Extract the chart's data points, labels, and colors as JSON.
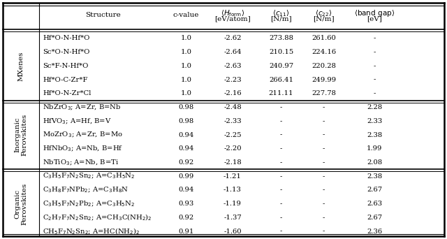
{
  "sections": [
    {
      "label": "MXenes",
      "rows": [
        [
          "Hf*O-N-Hf*O",
          "1.0",
          "-2.62",
          "273.88",
          "261.60",
          "-"
        ],
        [
          "Sc*O-N-Hf*O",
          "1.0",
          "-2.64",
          "210.15",
          "224.16",
          "-"
        ],
        [
          "Sc*F-N-Hf*O",
          "1.0",
          "-2.63",
          "240.97",
          "220.28",
          "-"
        ],
        [
          "Hf*O-C-Zr*F",
          "1.0",
          "-2.23",
          "266.41",
          "249.99",
          "-"
        ],
        [
          "Hf*O-N-Zr*Cl",
          "1.0",
          "-2.16",
          "211.11",
          "227.78",
          "-"
        ]
      ]
    },
    {
      "label": "Inorganic\nPerovskites",
      "rows": [
        [
          "NbZrO$_3$; A=Zr, B=Nb",
          "0.98",
          "-2.48",
          "-",
          "-",
          "2.28"
        ],
        [
          "HfVO$_3$; A=Hf, B=V",
          "0.98",
          "-2.33",
          "-",
          "-",
          "2.33"
        ],
        [
          "MoZrO$_3$; A=Zr, B=Mo",
          "0.94",
          "-2.25",
          "-",
          "-",
          "2.38"
        ],
        [
          "HfNbO$_3$; A=Nb, B=Hf",
          "0.94",
          "-2.20",
          "-",
          "-",
          "1.99"
        ],
        [
          "NbTiO$_3$; A=Nb, B=Ti",
          "0.92",
          "-2.18",
          "-",
          "-",
          "2.08"
        ]
      ]
    },
    {
      "label": "Organic\nPerovskites",
      "rows": [
        [
          "C$_3$H$_5$F$_7$N$_2$Sn$_2$; A=C$_3$H$_5$N$_2$",
          "0.99",
          "-1.21",
          "-",
          "-",
          "2.38"
        ],
        [
          "C$_3$H$_8$F$_7$NPb$_2$; A=C$_3$H$_8$N",
          "0.94",
          "-1.13",
          "-",
          "-",
          "2.67"
        ],
        [
          "C$_3$H$_5$F$_7$N$_2$Pb$_2$; A=C$_3$H$_5$N$_2$",
          "0.93",
          "-1.19",
          "-",
          "-",
          "2.63"
        ],
        [
          "C$_2$H$_7$F$_7$N$_2$Sn$_2$; A=CH$_3$C(NH$_2$)$_2$",
          "0.92",
          "-1.37",
          "-",
          "-",
          "2.67"
        ],
        [
          "CH$_5$F$_7$N$_2$Sn$_2$; A=HC(NH$_2$)$_2$",
          "0.91",
          "-1.60",
          "-",
          "-",
          "2.36"
        ]
      ]
    }
  ],
  "header_line1": [
    "Structure",
    "c-value",
    "$\\langle H_{\\mathrm{form}}\\rangle$",
    "$\\langle c_{11}\\rangle$",
    "$\\langle c_{22}\\rangle$",
    "$\\langle\\mathrm{band\\ gap}\\rangle$"
  ],
  "header_line2": [
    "",
    "",
    "[eV/atom]",
    "[N/m]",
    "[N/m]",
    "[eV]"
  ],
  "fig_bg": "#ffffff",
  "text_color": "#000000",
  "font_size": 7.2,
  "header_font_size": 7.5,
  "label_font_size": 7.5
}
